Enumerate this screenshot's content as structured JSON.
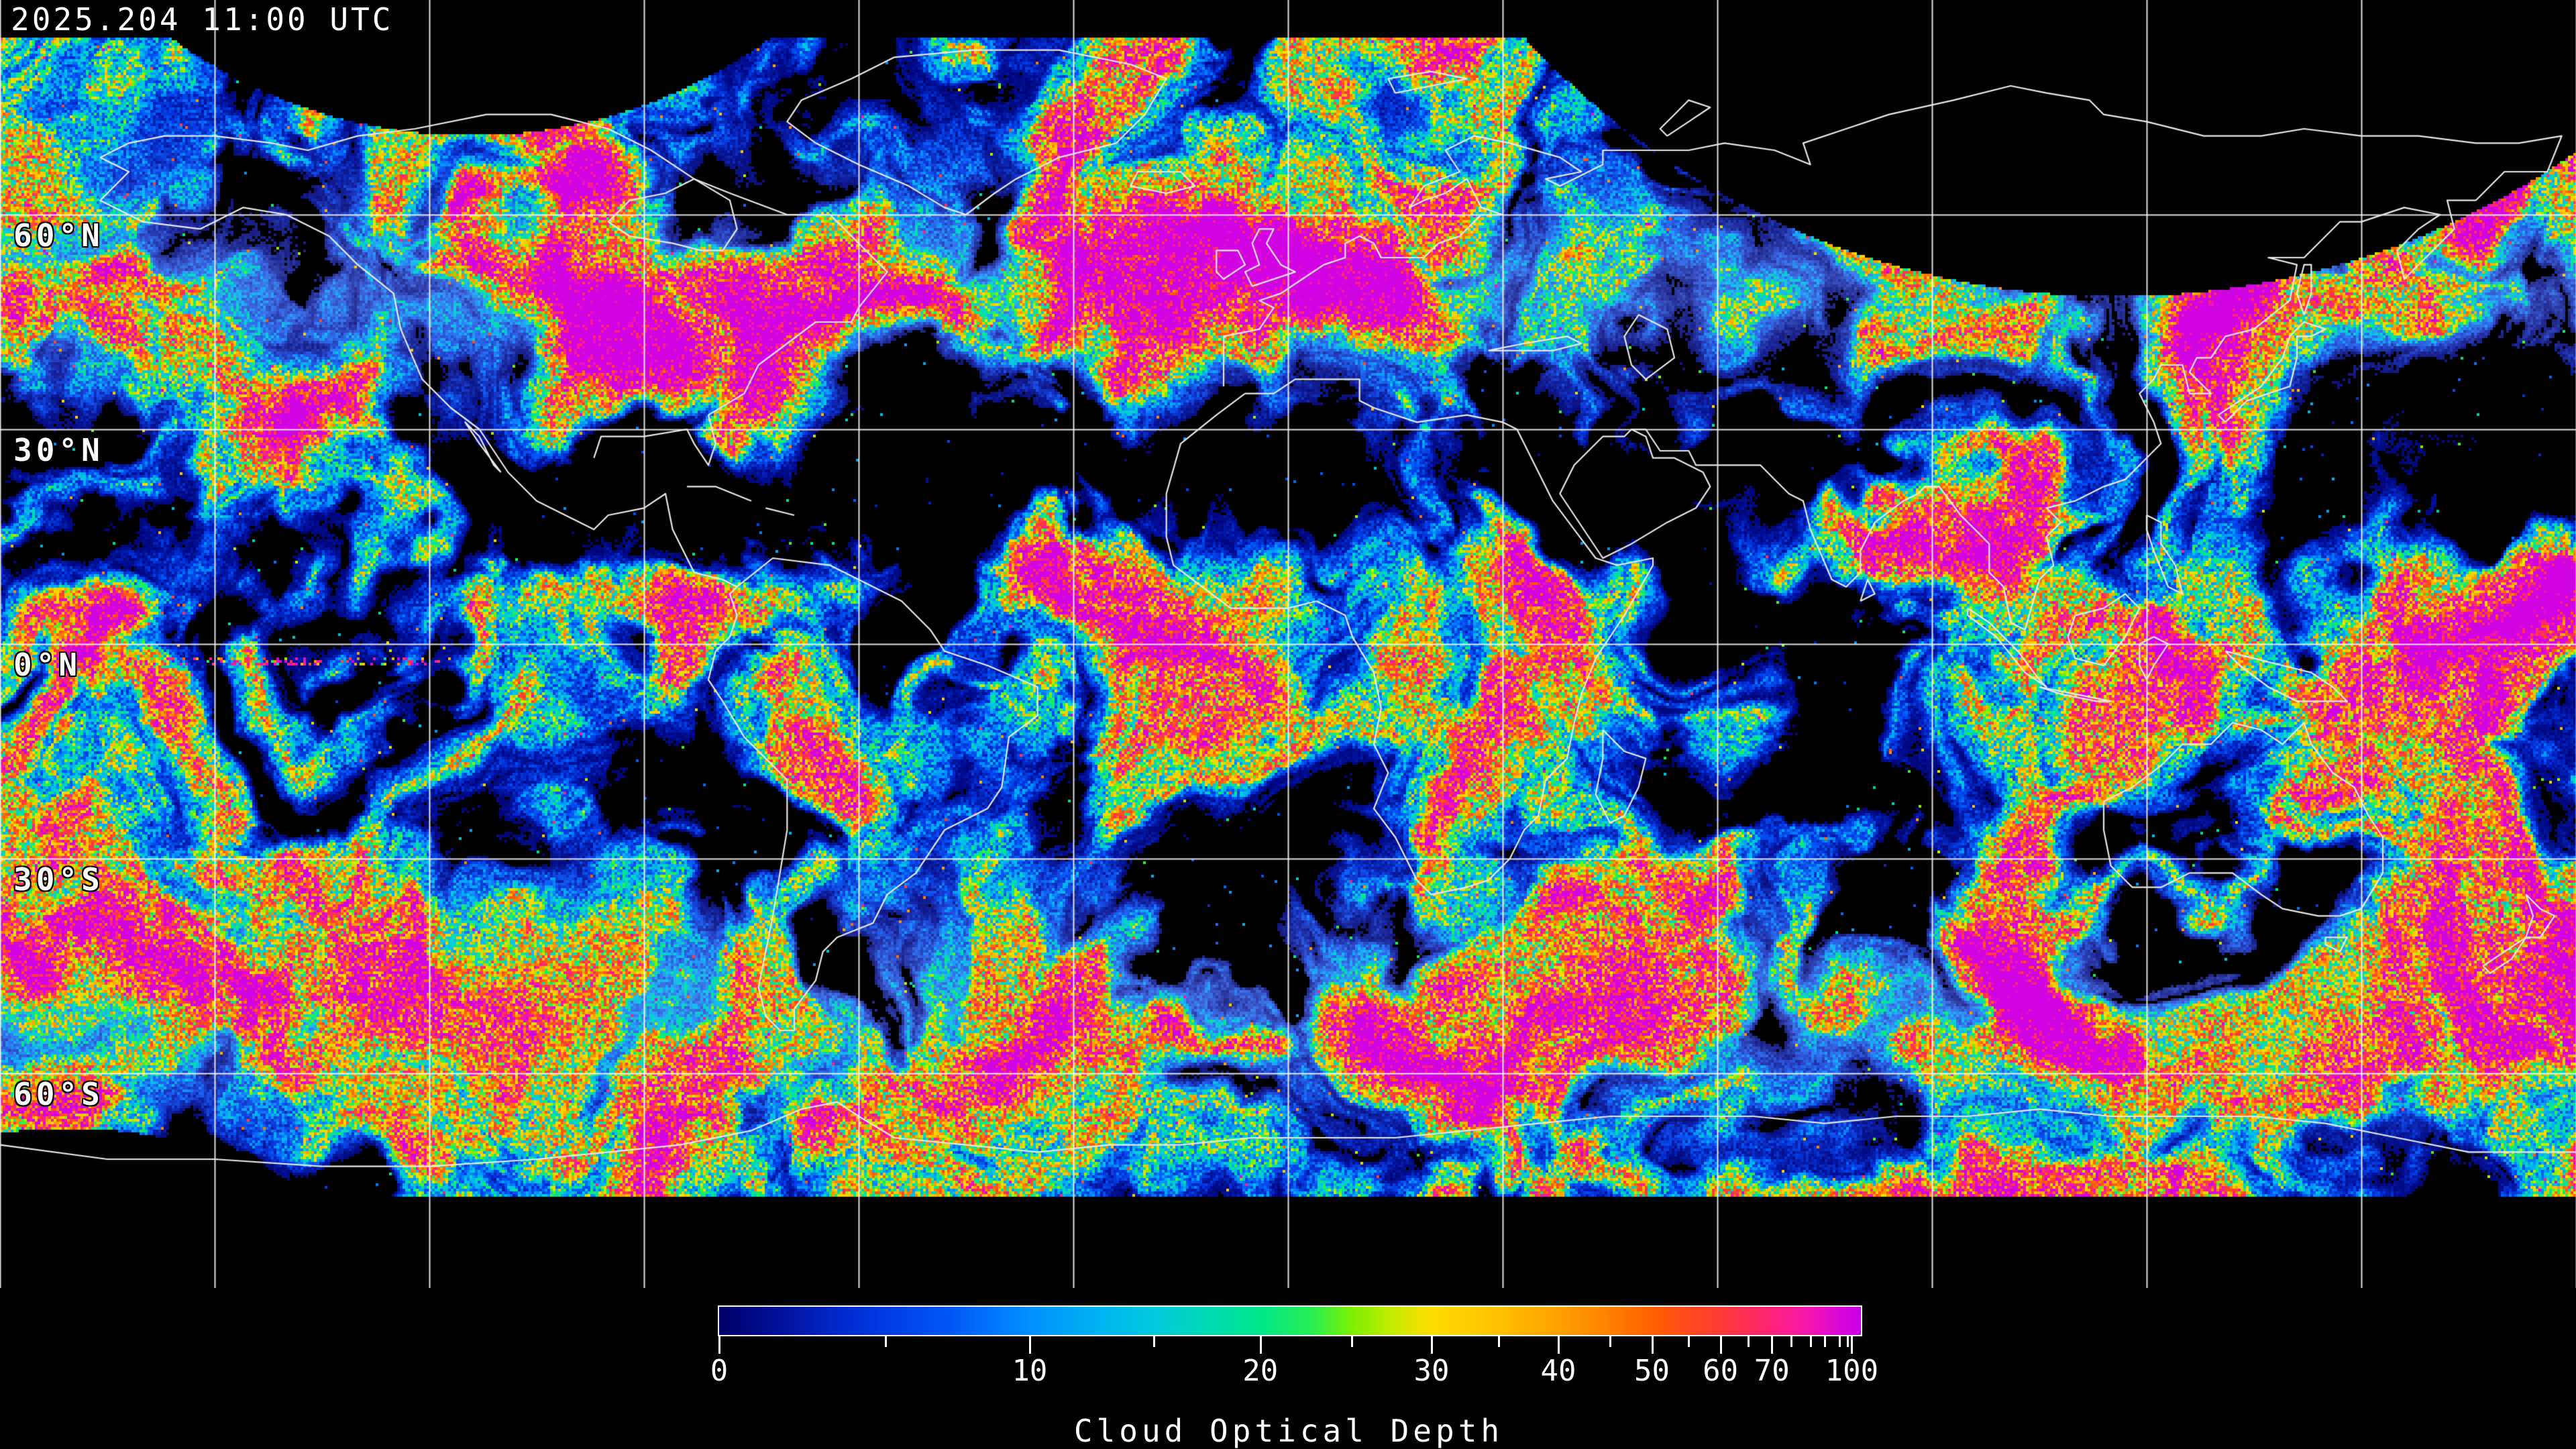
{
  "overlay": {
    "timestamp": "2025.204 11:00 UTC"
  },
  "map": {
    "background": "#000000",
    "coastline_color": "#e9e9e9",
    "grid_color": "#ffffff",
    "lon_interval_deg": 30,
    "lat_interval_deg": 30
  },
  "graticule": {
    "lat_labels": [
      {
        "label": "60°N",
        "lat": 60
      },
      {
        "label": "30°N",
        "lat": 30
      },
      {
        "label": "0°N",
        "lat": 0
      },
      {
        "label": "30°S",
        "lat": -30
      },
      {
        "label": "60°S",
        "lat": -60
      }
    ]
  },
  "colorbar": {
    "title": "Cloud Optical Depth",
    "min": 0,
    "max": 100,
    "tick_step": 5,
    "labeled_values": [
      0,
      10,
      20,
      30,
      40,
      50,
      60,
      70,
      100
    ],
    "value_fractions": [
      [
        0,
        0.0
      ],
      [
        5,
        0.146
      ],
      [
        10,
        0.272
      ],
      [
        15,
        0.381
      ],
      [
        20,
        0.474
      ],
      [
        25,
        0.554
      ],
      [
        30,
        0.624
      ],
      [
        35,
        0.683
      ],
      [
        40,
        0.735
      ],
      [
        45,
        0.78
      ],
      [
        50,
        0.817
      ],
      [
        55,
        0.849
      ],
      [
        60,
        0.877
      ],
      [
        65,
        0.901
      ],
      [
        70,
        0.922
      ],
      [
        75,
        0.939
      ],
      [
        80,
        0.956
      ],
      [
        85,
        0.968
      ],
      [
        90,
        0.981
      ],
      [
        95,
        0.988
      ],
      [
        100,
        0.992
      ]
    ],
    "gradient_stops": [
      [
        0.0,
        "#000068"
      ],
      [
        0.05,
        "#001098"
      ],
      [
        0.12,
        "#0030d8"
      ],
      [
        0.2,
        "#0056f6"
      ],
      [
        0.272,
        "#0090ff"
      ],
      [
        0.33,
        "#00b2f2"
      ],
      [
        0.381,
        "#00c9de"
      ],
      [
        0.43,
        "#00dcb2"
      ],
      [
        0.474,
        "#00e88c"
      ],
      [
        0.52,
        "#2aee50"
      ],
      [
        0.554,
        "#7df000"
      ],
      [
        0.59,
        "#c6ec00"
      ],
      [
        0.624,
        "#ffdc00"
      ],
      [
        0.683,
        "#ffc100"
      ],
      [
        0.735,
        "#ffa000"
      ],
      [
        0.78,
        "#ff8000"
      ],
      [
        0.817,
        "#ff6000"
      ],
      [
        0.849,
        "#ff4a1e"
      ],
      [
        0.877,
        "#ff3c38"
      ],
      [
        0.901,
        "#ff2e5a"
      ],
      [
        0.922,
        "#ff2278"
      ],
      [
        0.939,
        "#fb1c96"
      ],
      [
        0.956,
        "#f215b2"
      ],
      [
        0.968,
        "#e60ec6"
      ],
      [
        0.981,
        "#d906d8"
      ],
      [
        1.0,
        "#c800ea"
      ]
    ],
    "border_color": "#ffffff",
    "text_color": "#ffffff"
  }
}
